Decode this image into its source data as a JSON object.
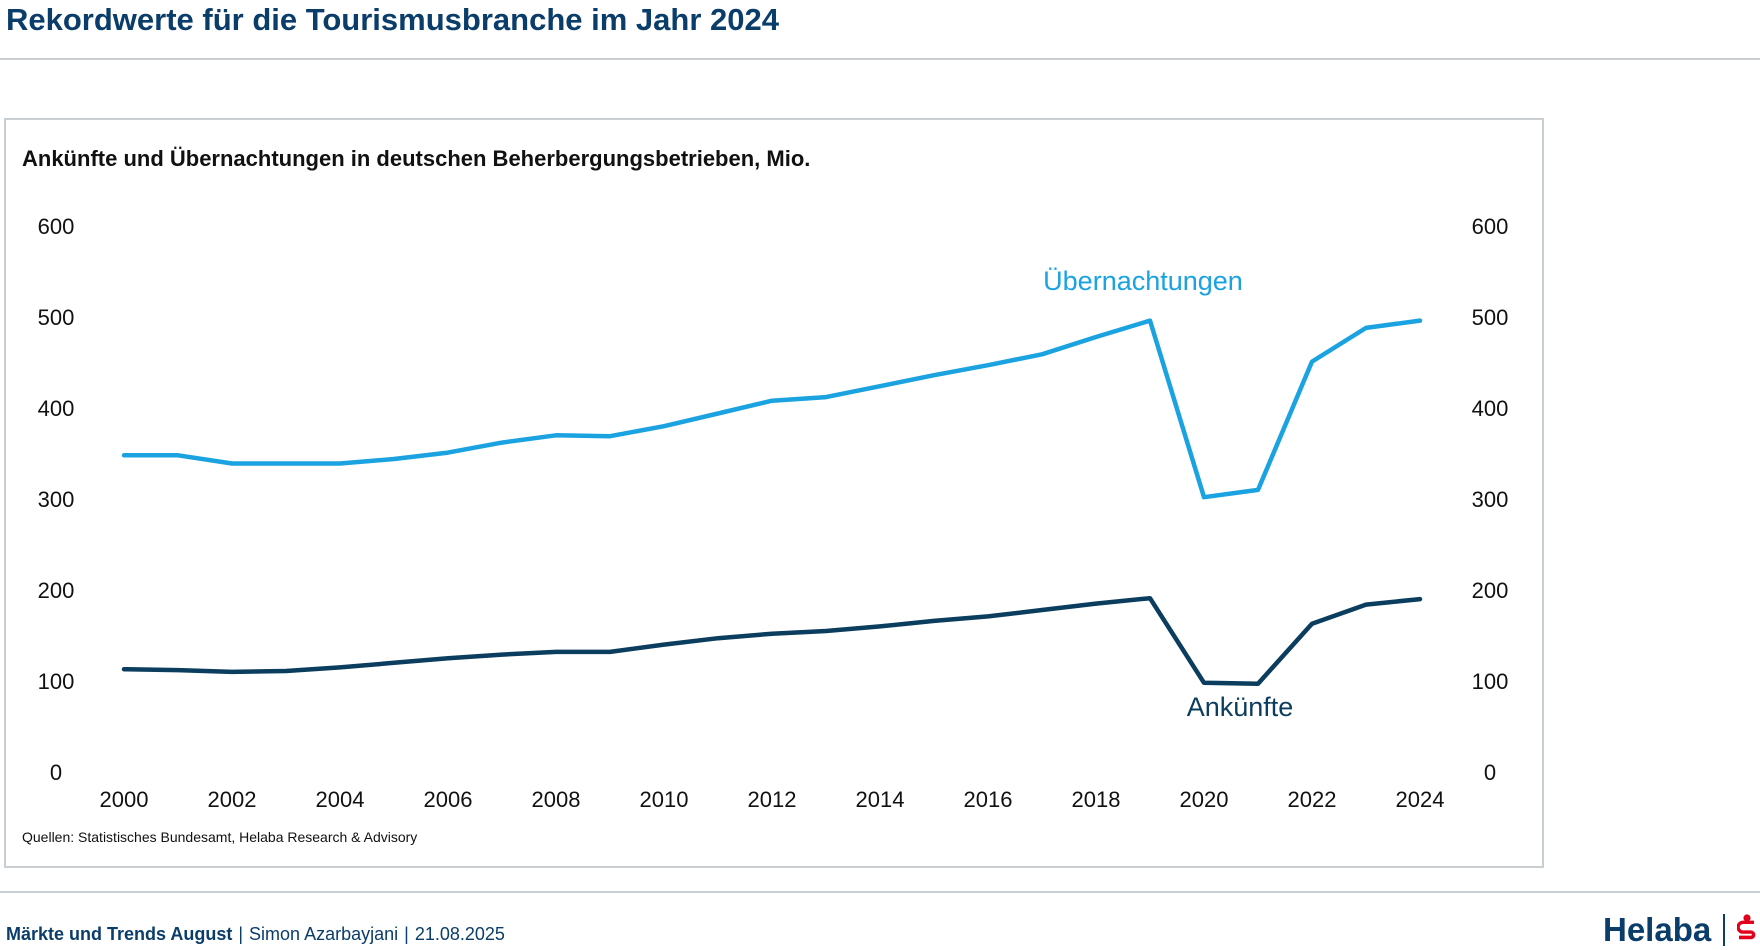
{
  "page": {
    "title": "Rekordwerte für die Tourismusbranche im Jahr 2024"
  },
  "chart_data": {
    "type": "line",
    "title": "Ankünfte und Übernachtungen in deutschen Beherbergungsbetrieben, Mio.",
    "xlabel": "",
    "ylabel": "",
    "x": [
      2000,
      2001,
      2002,
      2003,
      2004,
      2005,
      2006,
      2007,
      2008,
      2009,
      2010,
      2011,
      2012,
      2013,
      2014,
      2015,
      2016,
      2017,
      2018,
      2019,
      2020,
      2021,
      2022,
      2023,
      2024
    ],
    "x_tick_labels": [
      "2000",
      "2002",
      "2004",
      "2006",
      "2008",
      "2010",
      "2012",
      "2014",
      "2016",
      "2018",
      "2020",
      "2022",
      "2024"
    ],
    "y_tick_labels": [
      "0",
      "100",
      "200",
      "300",
      "400",
      "500",
      "600"
    ],
    "ylim": [
      0,
      600
    ],
    "xlim": [
      2000,
      2024
    ],
    "grid": false,
    "dual_axis_mirrored": true,
    "series": [
      {
        "name": "Übernachtungen",
        "color": "#1aa3e0",
        "values": [
          348,
          348,
          339,
          339,
          339,
          344,
          351,
          362,
          370,
          369,
          380,
          394,
          408,
          412,
          424,
          436,
          447,
          459,
          478,
          496,
          302,
          310,
          451,
          488,
          496
        ]
      },
      {
        "name": "Ankünfte",
        "color": "#0b3d5e",
        "values": [
          113,
          112,
          110,
          111,
          115,
          120,
          125,
          129,
          132,
          132,
          140,
          147,
          152,
          155,
          160,
          166,
          171,
          178,
          185,
          191,
          98,
          97,
          163,
          184,
          190
        ]
      }
    ]
  },
  "source": {
    "text": "Quellen: Statistisches Bundesamt, Helaba Research & Advisory"
  },
  "footer": {
    "report": "Märkte und Trends August",
    "author": "Simon Azarbayjani",
    "date": "21.08.2025",
    "separator": "|"
  },
  "logo": {
    "text": "Helaba",
    "icon": "sparkasse-s-icon",
    "accent_color": "#e2001a"
  },
  "colors": {
    "title": "#0b3d6b",
    "rule": "#c9ced3"
  }
}
